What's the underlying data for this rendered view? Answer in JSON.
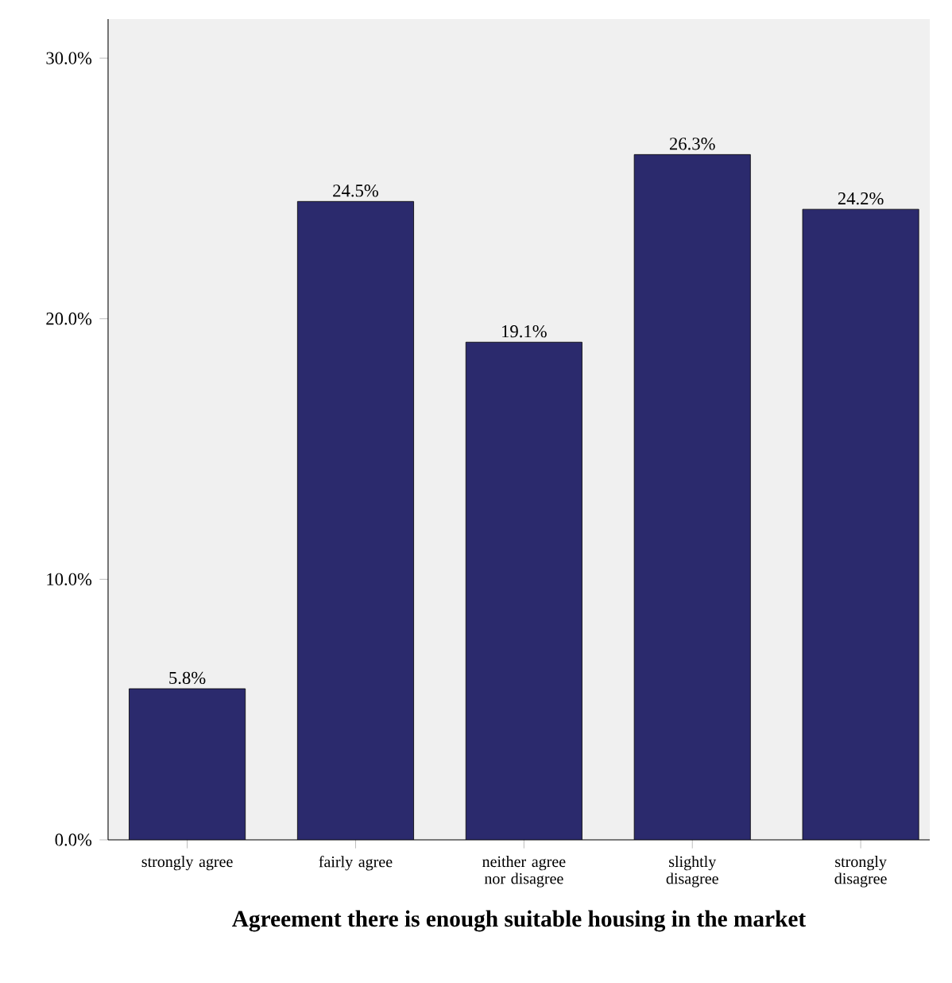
{
  "chart_data": {
    "type": "bar",
    "xlabel": "Agreement there is enough suitable housing in the market",
    "categories": [
      "strongly agree",
      "fairly agree",
      "neither agree nor disagree",
      "slightly disagree",
      "strongly disagree"
    ],
    "values": [
      5.8,
      24.5,
      19.1,
      26.3,
      24.2
    ],
    "value_labels": [
      "5.8%",
      "24.5%",
      "19.1%",
      "26.3%",
      "24.2%"
    ],
    "color": "#2b2a6d",
    "ylim": [
      0,
      31.5
    ],
    "yticks": [
      {
        "value": 0,
        "label": "0.0%"
      },
      {
        "value": 10,
        "label": "10.0%"
      },
      {
        "value": 20,
        "label": "20.0%"
      },
      {
        "value": 30,
        "label": "30.0%"
      }
    ],
    "grid": false
  }
}
